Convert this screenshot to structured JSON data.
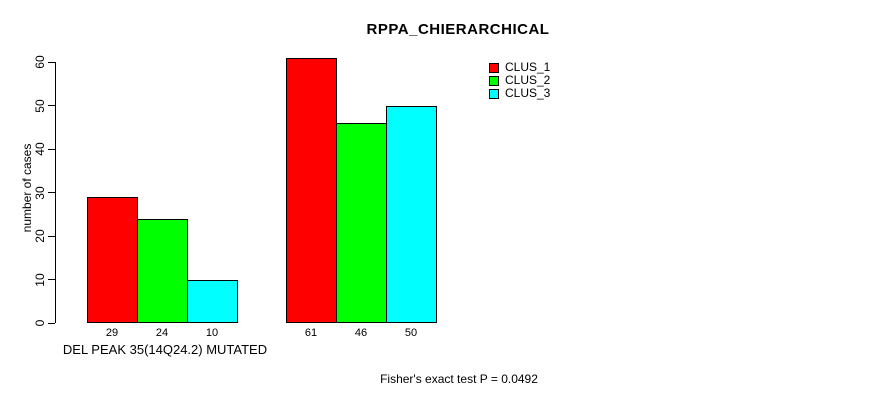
{
  "chart_data": {
    "type": "bar",
    "title": "RPPA_CHIERARCHICAL",
    "ylabel": "number of cases",
    "xlabel": "DEL PEAK 35(14Q24.2) MUTATED",
    "group_labels": [
      "DEL PEAK 35(14Q24.2) MUTATED",
      ""
    ],
    "series": [
      {
        "name": "CLUS_1",
        "color": "#ff0000",
        "values": [
          29,
          61
        ]
      },
      {
        "name": "CLUS_2",
        "color": "#00ff00",
        "values": [
          24,
          46
        ]
      },
      {
        "name": "CLUS_3",
        "color": "#00ffff",
        "values": [
          10,
          50
        ]
      }
    ],
    "yticks": [
      0,
      10,
      20,
      30,
      40,
      50,
      60
    ],
    "ylim": [
      0,
      60
    ],
    "grid": false,
    "legend": {
      "position": "top-right",
      "entries": [
        "CLUS_1",
        "CLUS_2",
        "CLUS_3"
      ]
    },
    "annotation": "Fisher's exact test P = 0.0492"
  },
  "colors": {
    "axis": "#000000",
    "background": "#ffffff",
    "clus_1": "#ff0000",
    "clus_2": "#00ff00",
    "clus_3": "#00ffff"
  }
}
